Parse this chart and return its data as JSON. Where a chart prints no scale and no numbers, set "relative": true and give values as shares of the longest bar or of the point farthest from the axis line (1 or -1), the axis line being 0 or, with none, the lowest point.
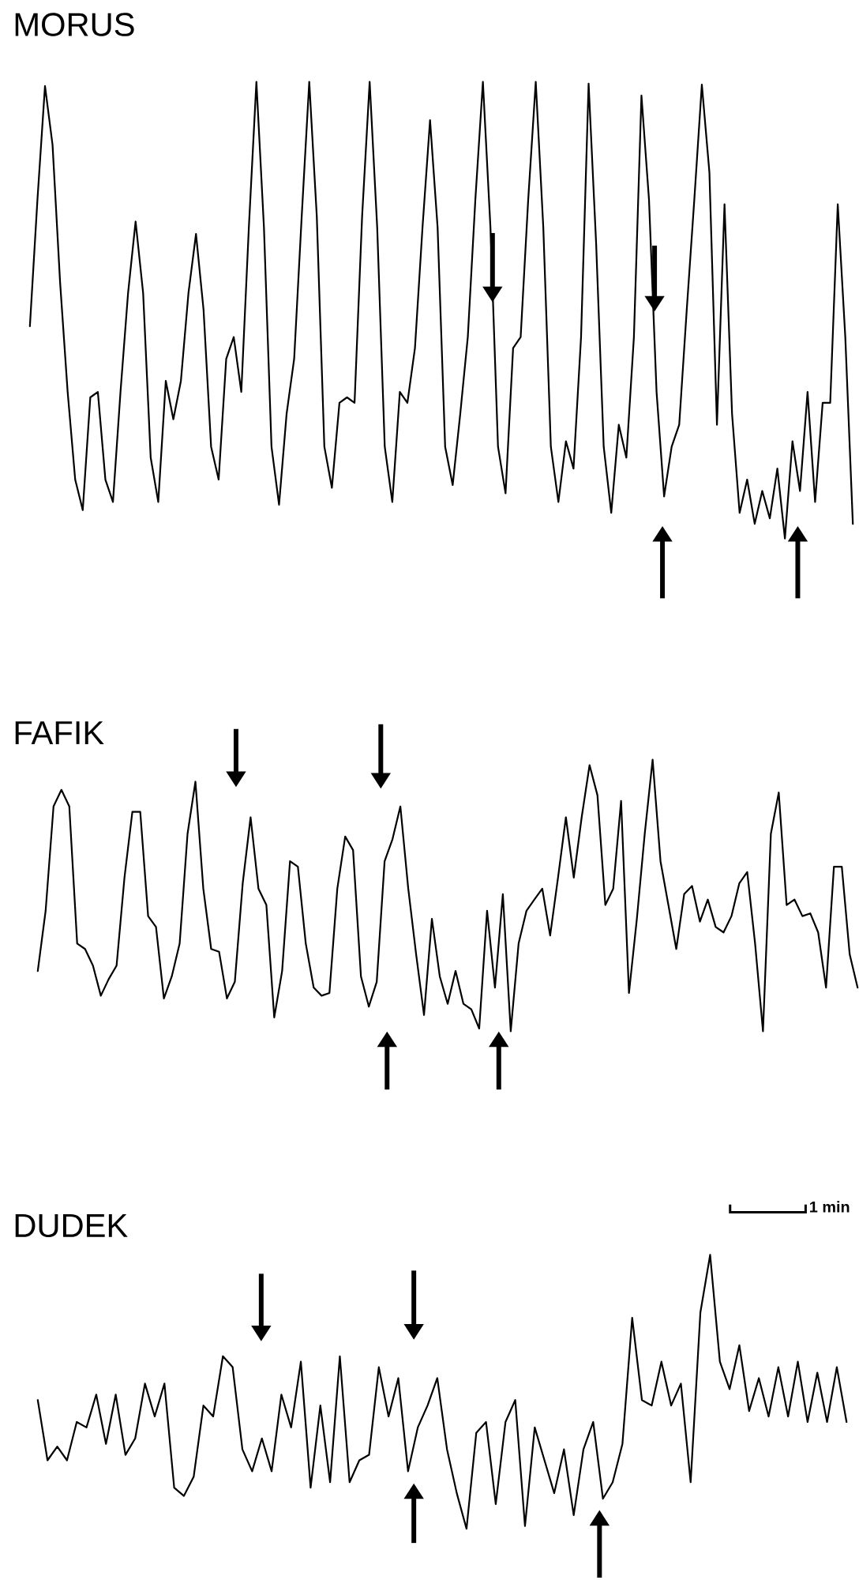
{
  "chart_data": [
    {
      "type": "line",
      "title": "MORUS",
      "relative": true,
      "color": "#000000",
      "categories": [
        null,
        null,
        null,
        null,
        null,
        null,
        null,
        null,
        null,
        null,
        null,
        null,
        null,
        null,
        null,
        null,
        null,
        null,
        null,
        null,
        null,
        null,
        null,
        null,
        null,
        null,
        null,
        null,
        null,
        null,
        null,
        null,
        null,
        null,
        null,
        null,
        null,
        null,
        null,
        null,
        null,
        null,
        null,
        null,
        null,
        null,
        null,
        null,
        null,
        null,
        null,
        null,
        null,
        null,
        null,
        null,
        null,
        null,
        null,
        null,
        null,
        null,
        null,
        null,
        null,
        null,
        null,
        null,
        null,
        null,
        null,
        null,
        null,
        null,
        null,
        null,
        null,
        null,
        null,
        null,
        null,
        null,
        null,
        null,
        null,
        null,
        null,
        null,
        null,
        null,
        null,
        null,
        null,
        null,
        null,
        null,
        null,
        null,
        null,
        null,
        null,
        null,
        null,
        null,
        null,
        null,
        null,
        null,
        null,
        null
      ],
      "values": [
        0.465,
        0.742,
        0.991,
        0.862,
        0.561,
        0.321,
        0.129,
        0.062,
        0.309,
        0.321,
        0.129,
        0.08,
        0.321,
        0.537,
        0.694,
        0.537,
        0.177,
        0.08,
        0.345,
        0.261,
        0.345,
        0.537,
        0.667,
        0.501,
        0.201,
        0.129,
        0.393,
        0.441,
        0.321,
        0.681,
        1,
        0.681,
        0.201,
        0.074,
        0.273,
        0.393,
        0.705,
        1,
        0.705,
        0.201,
        0.111,
        0.297,
        0.309,
        0.297,
        0.705,
        1,
        0.681,
        0.201,
        0.08,
        0.321,
        0.297,
        0.417,
        0.681,
        0.916,
        0.681,
        0.201,
        0.117,
        0.273,
        0.441,
        0.742,
        1,
        0.681,
        0.201,
        0.099,
        0.417,
        0.441,
        0.742,
        1,
        0.681,
        0.201,
        0.08,
        0.213,
        0.153,
        0.441,
        0.996,
        0.645,
        0.201,
        0.056,
        0.249,
        0.177,
        0.441,
        0.97,
        0.742,
        0.321,
        0.092,
        0.201,
        0.249,
        0.501,
        0.742,
        0.994,
        0.802,
        0.249,
        0.732,
        0.273,
        0.056,
        0.129,
        0.032,
        0.104,
        0.044,
        0.153,
        0,
        0.213,
        0.104,
        0.321,
        0.08,
        0.297,
        0.297,
        0.732,
        0.441,
        0.032
      ]
    },
    {
      "type": "line",
      "title": "FAFIK",
      "relative": true,
      "color": "#000000",
      "categories": [
        null,
        null,
        null,
        null,
        null,
        null,
        null,
        null,
        null,
        null,
        null,
        null,
        null,
        null,
        null,
        null,
        null,
        null,
        null,
        null,
        null,
        null,
        null,
        null,
        null,
        null,
        null,
        null,
        null,
        null,
        null,
        null,
        null,
        null,
        null,
        null,
        null,
        null,
        null,
        null,
        null,
        null,
        null,
        null,
        null,
        null,
        null,
        null,
        null,
        null,
        null,
        null,
        null,
        null,
        null,
        null,
        null,
        null,
        null,
        null,
        null,
        null,
        null,
        null,
        null,
        null,
        null,
        null,
        null,
        null,
        null,
        null,
        null,
        null,
        null,
        null,
        null,
        null,
        null,
        null,
        null,
        null,
        null,
        null,
        null,
        null,
        null,
        null,
        null,
        null,
        null,
        null,
        null,
        null,
        null,
        null,
        null,
        null,
        null,
        null,
        null,
        null,
        null,
        null,
        null
      ],
      "values": [
        0.222,
        0.444,
        0.828,
        0.889,
        0.828,
        0.323,
        0.303,
        0.242,
        0.131,
        0.192,
        0.242,
        0.566,
        0.808,
        0.808,
        0.424,
        0.384,
        0.121,
        0.202,
        0.323,
        0.727,
        0.919,
        0.525,
        0.303,
        0.293,
        0.121,
        0.182,
        0.545,
        0.788,
        0.525,
        0.465,
        0.051,
        0.222,
        0.626,
        0.606,
        0.323,
        0.161,
        0.131,
        0.141,
        0.525,
        0.717,
        0.667,
        0.202,
        0.091,
        0.182,
        0.626,
        0.707,
        0.828,
        0.525,
        0.283,
        0.06,
        0.414,
        0.202,
        0.101,
        0.222,
        0.101,
        0.081,
        0.01,
        0.444,
        0.161,
        0.505,
        0,
        0.323,
        0.444,
        0.485,
        0.525,
        0.353,
        0.566,
        0.788,
        0.566,
        0.788,
        0.98,
        0.869,
        0.465,
        0.525,
        0.848,
        0.141,
        0.414,
        0.727,
        1.0,
        0.626,
        0.465,
        0.303,
        0.505,
        0.535,
        0.404,
        0.485,
        0.384,
        0.364,
        0.424,
        0.545,
        0.586,
        0.323,
        0.0,
        0.727,
        0.879,
        0.465,
        0.485,
        0.424,
        0.434,
        0.364,
        0.161,
        0.606,
        0.606,
        0.283,
        0.161
      ]
    },
    {
      "type": "line",
      "title": "DUDEK",
      "relative": true,
      "color": "#000000",
      "annotations": [
        "1 min"
      ],
      "categories": [
        null,
        null,
        null,
        null,
        null,
        null,
        null,
        null,
        null,
        null,
        null,
        null,
        null,
        null,
        null,
        null,
        null,
        null,
        null,
        null,
        null,
        null,
        null,
        null,
        null,
        null,
        null,
        null,
        null,
        null,
        null,
        null,
        null,
        null,
        null,
        null,
        null,
        null,
        null,
        null,
        null,
        null,
        null,
        null,
        null,
        null,
        null,
        null,
        null,
        null,
        null,
        null,
        null,
        null,
        null,
        null,
        null,
        null,
        null,
        null,
        null,
        null,
        null,
        null,
        null,
        null,
        null,
        null,
        null,
        null,
        null,
        null,
        null,
        null,
        null,
        null,
        null,
        null,
        null,
        null,
        null,
        null,
        null,
        null
      ],
      "values": [
        0.47,
        0.25,
        0.3,
        0.25,
        0.39,
        0.37,
        0.49,
        0.31,
        0.49,
        0.27,
        0.33,
        0.53,
        0.41,
        0.53,
        0.15,
        0.12,
        0.19,
        0.45,
        0.41,
        0.63,
        0.59,
        0.29,
        0.21,
        0.33,
        0.21,
        0.49,
        0.37,
        0.61,
        0.15,
        0.45,
        0.17,
        0.63,
        0.17,
        0.25,
        0.27,
        0.59,
        0.41,
        0.55,
        0.21,
        0.37,
        0.45,
        0.55,
        0.29,
        0.13,
        0,
        0.35,
        0.39,
        0.09,
        0.39,
        0.47,
        0.01,
        0.37,
        0.25,
        0.13,
        0.29,
        0.05,
        0.29,
        0.39,
        0.11,
        0.17,
        0.31,
        0.77,
        0.47,
        0.45,
        0.61,
        0.45,
        0.53,
        0.17,
        0.79,
        1,
        0.61,
        0.51,
        0.67,
        0.43,
        0.55,
        0.41,
        0.59,
        0.41,
        0.61,
        0.39,
        0.57,
        0.39,
        0.59,
        0.39
      ]
    }
  ]
}
